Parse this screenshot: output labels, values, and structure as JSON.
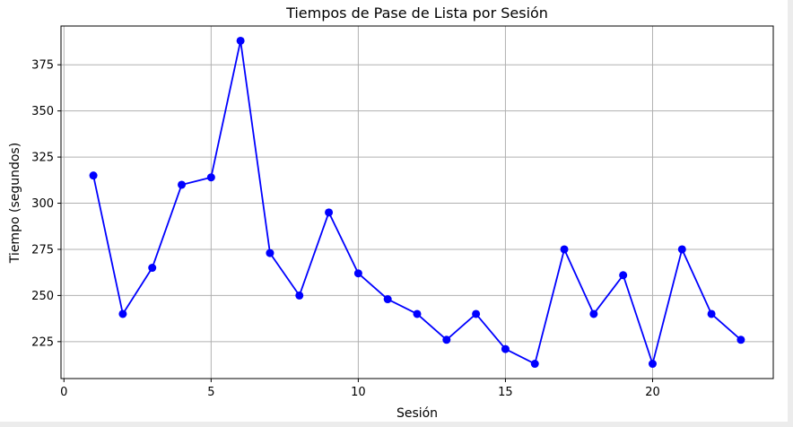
{
  "chart_data": {
    "type": "line",
    "title": "Tiempos de Pase de Lista por Sesión",
    "xlabel": "Sesión",
    "ylabel": "Tiempo (segundos)",
    "x": [
      1,
      2,
      3,
      4,
      5,
      6,
      7,
      8,
      9,
      10,
      11,
      12,
      13,
      14,
      15,
      16,
      17,
      18,
      19,
      20,
      21,
      22,
      23
    ],
    "series": [
      {
        "values": [
          315,
          240,
          265,
          310,
          314,
          388,
          273,
          250,
          295,
          262,
          248,
          240,
          226,
          240,
          221,
          213,
          275,
          240,
          261,
          213,
          275,
          240,
          226
        ],
        "color": "#0000ff",
        "marker": "circle"
      }
    ],
    "xlim": [
      -0.1,
      24.1
    ],
    "ylim": [
      205,
      396
    ],
    "xticks": [
      0,
      5,
      10,
      15,
      20
    ],
    "yticks": [
      225,
      250,
      275,
      300,
      325,
      350,
      375
    ],
    "grid": true,
    "colors": {
      "figure_background": "#ffffff",
      "outer_background": "#ececec",
      "grid": "#b0b0b0",
      "axes": "#000000"
    }
  }
}
